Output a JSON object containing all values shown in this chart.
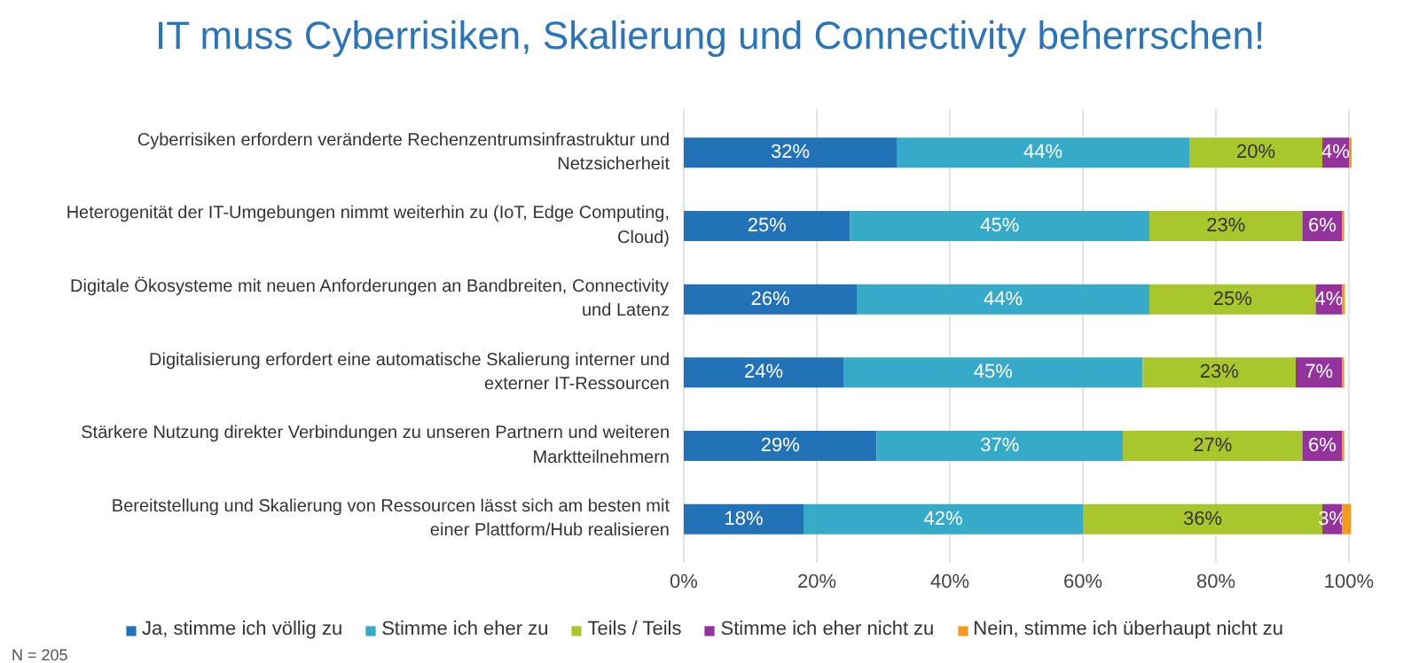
{
  "chart_data": {
    "type": "bar",
    "orientation": "horizontal",
    "stacked": true,
    "title": "IT muss Cyberrisiken, Skalierung und Connectivity beherrschen!",
    "categories": [
      "Cyberrisiken erfordern veränderte Rechenzentrumsinfrastruktur und Netzsicherheit",
      "Heterogenität der IT-Umgebungen nimmt weiterhin zu (IoT, Edge Computing, Cloud)",
      "Digitale Ökosysteme mit neuen Anforderungen an Bandbreiten, Connectivity und Latenz",
      "Digitalisierung erfordert eine automatische Skalierung interner und externer IT-Ressourcen",
      "Stärkere Nutzung direkter Verbindungen zu unseren Partnern und weiteren Marktteilnehmern",
      "Bereitstellung und Skalierung von Ressourcen lässt sich am besten mit einer Plattform/Hub realisieren"
    ],
    "series": [
      {
        "name": "Ja, stimme ich völlig zu",
        "color": "#2272b8",
        "values": [
          32,
          25,
          26,
          24,
          29,
          18
        ],
        "value_labels": [
          "32%",
          "25%",
          "26%",
          "24%",
          "29%",
          "18%"
        ]
      },
      {
        "name": "Stimme ich eher zu",
        "color": "#35aac9",
        "values": [
          44,
          45,
          44,
          45,
          37,
          42
        ],
        "value_labels": [
          "44%",
          "45%",
          "44%",
          "45%",
          "37%",
          "42%"
        ]
      },
      {
        "name": "Teils / Teils",
        "color": "#a9c62c",
        "values": [
          20,
          23,
          25,
          23,
          27,
          36
        ],
        "value_labels": [
          "20%",
          "23%",
          "25%",
          "23%",
          "27%",
          "36%"
        ]
      },
      {
        "name": "Stimme ich eher nicht zu",
        "color": "#94339c",
        "values": [
          4,
          6,
          4,
          7,
          6,
          3
        ],
        "value_labels": [
          "4%",
          "6%",
          "4%",
          "7%",
          "6%",
          "3%"
        ]
      },
      {
        "name": "Nein, stimme ich überhaupt nicht zu",
        "color": "#f39a1e",
        "values": [
          0.4,
          0.3,
          0.4,
          0.3,
          0.3,
          1.3
        ],
        "value_labels": [
          null,
          null,
          null,
          null,
          null,
          null
        ]
      }
    ],
    "xlim": [
      0,
      100
    ],
    "xticks": [
      {
        "value": 0,
        "label": "0%"
      },
      {
        "value": 20,
        "label": "20%"
      },
      {
        "value": 40,
        "label": "40%"
      },
      {
        "value": 60,
        "label": "60%"
      },
      {
        "value": 80,
        "label": "80%"
      },
      {
        "value": 100,
        "label": "100%"
      }
    ],
    "grid": "x",
    "legend": "bottom",
    "annotations": [
      "N = 205"
    ]
  }
}
